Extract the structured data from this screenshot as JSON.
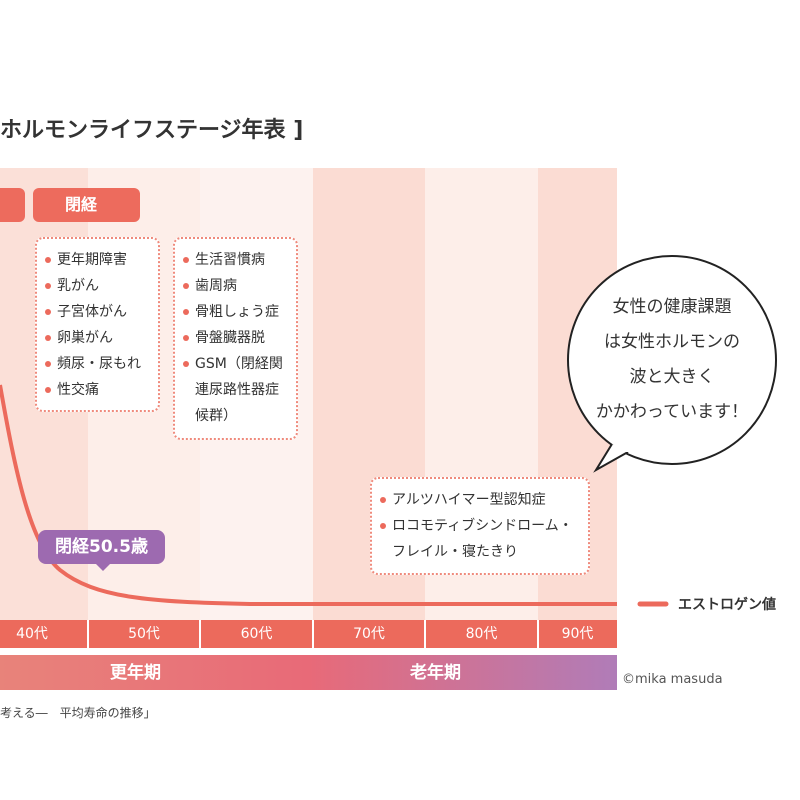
{
  "title": "ホルモンライフステージ年表 ]",
  "stage_labels": [
    "閉経"
  ],
  "boxes": [
    {
      "items": [
        "更年期障害",
        "乳がん",
        "子宮体がん",
        "卵巣がん",
        "頻尿・尿もれ",
        "性交痛"
      ]
    },
    {
      "items": [
        "生活習慣病",
        "歯周病",
        "骨粗しょう症",
        "骨盤臓器脱",
        "GSM（閉経関連尿路性器症候群）"
      ]
    },
    {
      "items": [
        "アルツハイマー型認知症",
        "ロコモティブシンドローム・フレイル・寝たきり"
      ]
    }
  ],
  "bubble": {
    "lines": [
      "女性の健康課題",
      "は女性ホルモンの",
      "波と大きく",
      "かかわっています！"
    ]
  },
  "menopause_label": "閉経50.5歳",
  "legend": "エストロゲン値",
  "decades": [
    "40代",
    "50代",
    "60代",
    "70代",
    "80代",
    "90代"
  ],
  "phases": [
    "更年期",
    "老年期"
  ],
  "credit": "©mika masuda",
  "footer": "考える―　平均寿命の推移」"
}
